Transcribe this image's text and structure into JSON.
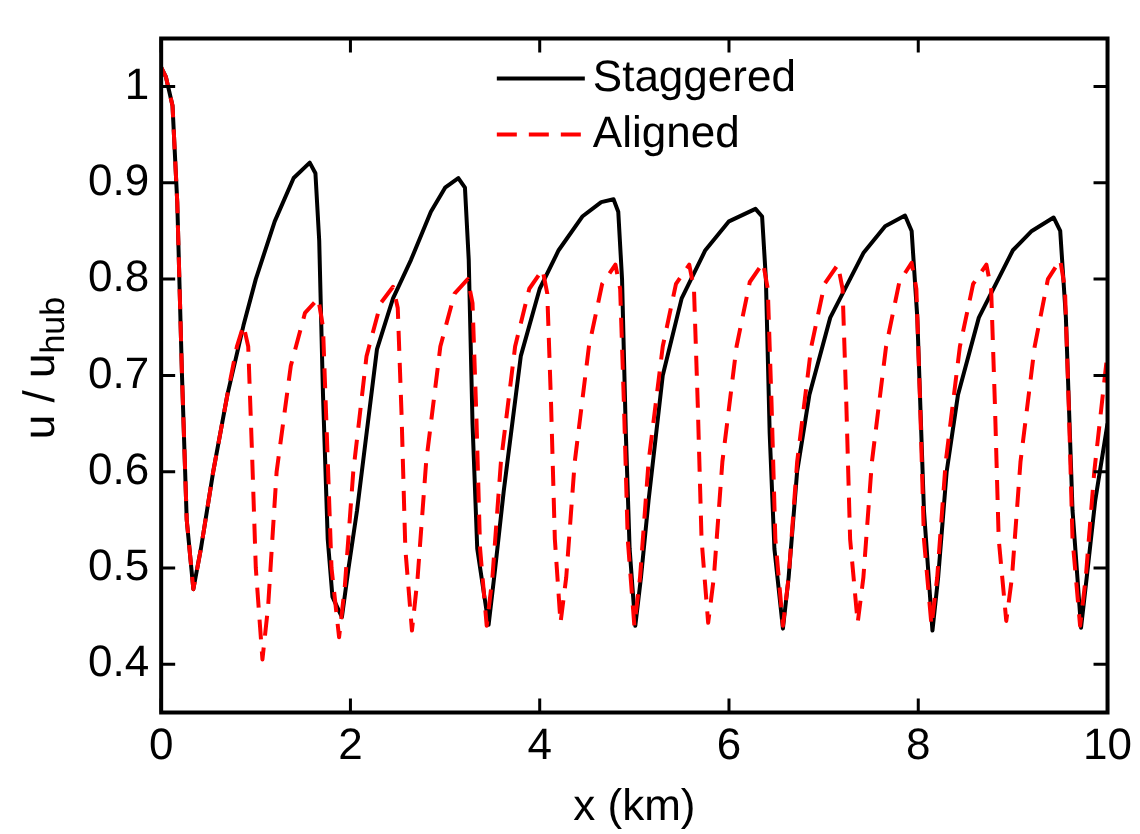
{
  "chart_data": {
    "type": "line",
    "xlabel": "x (km)",
    "ylabel": "u / u$_{hub}$",
    "xlim": [
      0,
      10
    ],
    "ylim": [
      0.35,
      1.05
    ],
    "xticks": [
      0,
      2,
      4,
      6,
      8,
      10
    ],
    "yticks": [
      0.4,
      0.5,
      0.6,
      0.7,
      0.8,
      0.9,
      1
    ],
    "grid": false,
    "legend": "top",
    "marker": "none",
    "series": [
      {
        "name": "Staggered",
        "color": "#000000",
        "line_style": "solid",
        "x": [
          0,
          0.05,
          0.12,
          0.17,
          0.22,
          0.27,
          0.34,
          0.42,
          0.55,
          0.7,
          0.87,
          1.0,
          1.2,
          1.4,
          1.57,
          1.63,
          1.67,
          1.71,
          1.76,
          1.81,
          1.91,
          1.98,
          2.07,
          2.28,
          2.45,
          2.64,
          2.85,
          3.0,
          3.14,
          3.21,
          3.25,
          3.29,
          3.34,
          3.46,
          3.53,
          3.62,
          3.8,
          4.0,
          4.2,
          4.45,
          4.65,
          4.78,
          4.83,
          4.87,
          4.91,
          4.95,
          5.01,
          5.07,
          5.15,
          5.3,
          5.5,
          5.75,
          6.0,
          6.28,
          6.35,
          6.39,
          6.43,
          6.48,
          6.57,
          6.63,
          6.72,
          6.85,
          7.07,
          7.42,
          7.65,
          7.86,
          7.93,
          7.99,
          8.06,
          8.15,
          8.21,
          8.3,
          8.42,
          8.64,
          9.0,
          9.2,
          9.43,
          9.5,
          9.56,
          9.63,
          9.72,
          9.78,
          9.87,
          10
        ],
        "values": [
          1.02,
          1.01,
          0.98,
          0.88,
          0.7,
          0.55,
          0.478,
          0.52,
          0.6,
          0.68,
          0.752,
          0.8,
          0.86,
          0.905,
          0.921,
          0.91,
          0.84,
          0.68,
          0.53,
          0.47,
          0.449,
          0.5,
          0.56,
          0.727,
          0.78,
          0.82,
          0.87,
          0.895,
          0.905,
          0.895,
          0.82,
          0.65,
          0.52,
          0.441,
          0.5,
          0.58,
          0.72,
          0.79,
          0.83,
          0.865,
          0.88,
          0.883,
          0.87,
          0.8,
          0.64,
          0.52,
          0.44,
          0.49,
          0.57,
          0.7,
          0.78,
          0.83,
          0.86,
          0.873,
          0.865,
          0.8,
          0.64,
          0.52,
          0.437,
          0.49,
          0.6,
          0.68,
          0.76,
          0.827,
          0.855,
          0.866,
          0.85,
          0.76,
          0.56,
          0.435,
          0.49,
          0.6,
          0.68,
          0.76,
          0.83,
          0.85,
          0.864,
          0.85,
          0.76,
          0.56,
          0.438,
          0.49,
          0.57,
          0.65
        ]
      },
      {
        "name": "Aligned",
        "color": "#ff0000",
        "line_style": "dashed",
        "x": [
          0,
          0.05,
          0.12,
          0.17,
          0.22,
          0.27,
          0.34,
          0.42,
          0.55,
          0.7,
          0.8,
          0.87,
          0.92,
          0.96,
          1.0,
          1.07,
          1.13,
          1.22,
          1.37,
          1.52,
          1.66,
          1.71,
          1.75,
          1.8,
          1.88,
          1.94,
          2.03,
          2.17,
          2.32,
          2.45,
          2.5,
          2.54,
          2.58,
          2.65,
          2.71,
          2.8,
          2.95,
          3.1,
          3.24,
          3.29,
          3.33,
          3.37,
          3.44,
          3.5,
          3.59,
          3.74,
          3.89,
          4.03,
          4.08,
          4.12,
          4.16,
          4.22,
          4.28,
          4.37,
          4.52,
          4.66,
          4.8,
          4.85,
          4.89,
          4.93,
          5.0,
          5.06,
          5.15,
          5.3,
          5.44,
          5.58,
          5.63,
          5.67,
          5.71,
          5.78,
          5.84,
          5.93,
          6.08,
          6.22,
          6.36,
          6.41,
          6.45,
          6.49,
          6.57,
          6.63,
          6.72,
          6.87,
          7.01,
          7.15,
          7.2,
          7.24,
          7.28,
          7.36,
          7.42,
          7.51,
          7.66,
          7.8,
          7.93,
          7.98,
          8.02,
          8.06,
          8.14,
          8.2,
          8.29,
          8.44,
          8.58,
          8.72,
          8.77,
          8.81,
          8.85,
          8.93,
          8.99,
          9.08,
          9.23,
          9.37,
          9.5,
          9.55,
          9.59,
          9.63,
          9.71,
          9.77,
          9.86,
          10
        ],
        "values": [
          1.02,
          1.01,
          0.98,
          0.88,
          0.7,
          0.55,
          0.478,
          0.52,
          0.6,
          0.68,
          0.73,
          0.752,
          0.73,
          0.62,
          0.5,
          0.405,
          0.46,
          0.6,
          0.71,
          0.765,
          0.78,
          0.75,
          0.64,
          0.5,
          0.428,
          0.48,
          0.6,
          0.72,
          0.775,
          0.792,
          0.77,
          0.66,
          0.52,
          0.435,
          0.49,
          0.61,
          0.73,
          0.785,
          0.8,
          0.775,
          0.66,
          0.52,
          0.44,
          0.49,
          0.61,
          0.73,
          0.79,
          0.81,
          0.785,
          0.67,
          0.53,
          0.443,
          0.49,
          0.61,
          0.73,
          0.795,
          0.815,
          0.79,
          0.67,
          0.53,
          0.44,
          0.49,
          0.61,
          0.73,
          0.795,
          0.815,
          0.79,
          0.67,
          0.53,
          0.443,
          0.49,
          0.61,
          0.73,
          0.797,
          0.817,
          0.79,
          0.67,
          0.53,
          0.44,
          0.49,
          0.61,
          0.73,
          0.795,
          0.815,
          0.79,
          0.67,
          0.53,
          0.443,
          0.49,
          0.61,
          0.73,
          0.797,
          0.817,
          0.79,
          0.67,
          0.53,
          0.44,
          0.49,
          0.61,
          0.73,
          0.795,
          0.815,
          0.79,
          0.67,
          0.53,
          0.445,
          0.49,
          0.61,
          0.73,
          0.8,
          0.82,
          0.79,
          0.67,
          0.53,
          0.44,
          0.49,
          0.6,
          0.724
        ]
      }
    ]
  }
}
